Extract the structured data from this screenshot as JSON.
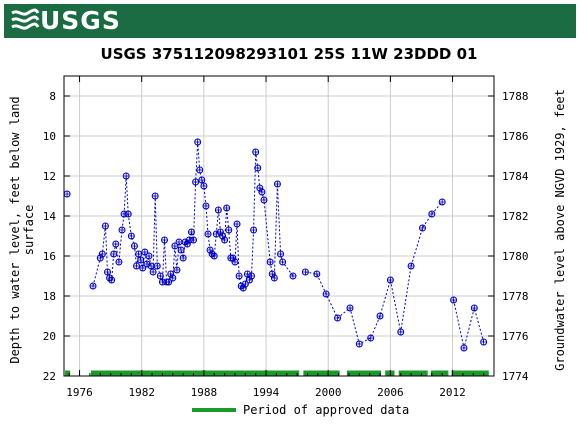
{
  "header": {
    "logo_text": "USGS"
  },
  "chart_data": {
    "type": "scatter",
    "title": "USGS 375112098293101 25S 11W 23DDD 01",
    "ylabel_left": "Depth to water level, feet below land surface",
    "ylabel_left_lines": [
      "Depth to water level, feet below land",
      "surface"
    ],
    "ylabel_right": "Groundwater level above NGVD 1929, feet",
    "xlim": [
      1974.5,
      2016.0
    ],
    "ylim": [
      22,
      7
    ],
    "right_ylim": [
      1774,
      1789
    ],
    "x_ticks": [
      1976,
      1982,
      1988,
      1994,
      2000,
      2006,
      2012
    ],
    "y_ticks": [
      8,
      10,
      12,
      14,
      16,
      18,
      20,
      22
    ],
    "right_y_ticks": [
      1774,
      1776,
      1778,
      1780,
      1782,
      1784,
      1786,
      1788
    ],
    "grid": true,
    "series": [
      {
        "marker": "circle",
        "color": "#0000cc",
        "segments": [
          [
            [
              1974.8,
              12.9
            ]
          ],
          [
            [
              1977.3,
              17.5
            ],
            [
              1978.0,
              16.1
            ],
            [
              1978.2,
              15.9
            ],
            [
              1978.5,
              14.5
            ],
            [
              1978.7,
              16.8
            ],
            [
              1978.9,
              17.1
            ],
            [
              1979.1,
              17.2
            ],
            [
              1979.3,
              15.9
            ],
            [
              1979.5,
              15.4
            ],
            [
              1979.8,
              16.3
            ],
            [
              1980.1,
              14.7
            ],
            [
              1980.3,
              13.9
            ],
            [
              1980.5,
              12.0
            ],
            [
              1980.7,
              13.9
            ],
            [
              1981.0,
              15.0
            ],
            [
              1981.3,
              15.5
            ],
            [
              1981.5,
              16.5
            ],
            [
              1981.7,
              15.9
            ],
            [
              1981.9,
              16.2
            ],
            [
              1982.1,
              16.6
            ],
            [
              1982.3,
              15.8
            ],
            [
              1982.5,
              16.4
            ],
            [
              1982.7,
              16.0
            ],
            [
              1982.9,
              16.5
            ],
            [
              1983.1,
              16.8
            ],
            [
              1983.3,
              13.0
            ],
            [
              1983.5,
              16.5
            ],
            [
              1983.8,
              17.0
            ],
            [
              1984.0,
              17.3
            ],
            [
              1984.2,
              15.2
            ],
            [
              1984.4,
              17.3
            ],
            [
              1984.6,
              17.3
            ],
            [
              1984.8,
              16.9
            ],
            [
              1985.0,
              17.1
            ],
            [
              1985.2,
              15.5
            ],
            [
              1985.4,
              16.7
            ],
            [
              1985.6,
              15.3
            ],
            [
              1985.8,
              15.7
            ],
            [
              1986.0,
              16.1
            ],
            [
              1986.2,
              15.3
            ],
            [
              1986.4,
              15.4
            ],
            [
              1986.6,
              15.2
            ],
            [
              1986.8,
              14.8
            ],
            [
              1987.0,
              15.2
            ],
            [
              1987.2,
              12.3
            ],
            [
              1987.4,
              10.3
            ],
            [
              1987.6,
              11.7
            ],
            [
              1987.8,
              12.2
            ],
            [
              1988.0,
              12.5
            ],
            [
              1988.2,
              13.5
            ],
            [
              1988.4,
              14.9
            ],
            [
              1988.6,
              15.7
            ],
            [
              1988.8,
              15.9
            ],
            [
              1989.0,
              16.0
            ],
            [
              1989.2,
              14.9
            ],
            [
              1989.4,
              13.7
            ],
            [
              1989.6,
              14.8
            ],
            [
              1989.8,
              15.0
            ],
            [
              1990.0,
              15.2
            ],
            [
              1990.2,
              13.6
            ],
            [
              1990.4,
              14.7
            ],
            [
              1990.6,
              16.1
            ],
            [
              1990.8,
              16.1
            ],
            [
              1991.0,
              16.3
            ],
            [
              1991.2,
              14.4
            ],
            [
              1991.4,
              17.0
            ],
            [
              1991.6,
              17.5
            ],
            [
              1991.8,
              17.6
            ],
            [
              1992.0,
              17.4
            ],
            [
              1992.2,
              16.9
            ],
            [
              1992.4,
              17.2
            ],
            [
              1992.6,
              17.0
            ],
            [
              1992.8,
              14.7
            ],
            [
              1993.0,
              10.8
            ],
            [
              1993.2,
              11.6
            ],
            [
              1993.4,
              12.6
            ],
            [
              1993.6,
              12.8
            ],
            [
              1993.8,
              13.2
            ],
            [
              1994.4,
              16.3
            ],
            [
              1994.6,
              16.9
            ],
            [
              1994.8,
              17.1
            ],
            [
              1995.1,
              12.4
            ],
            [
              1995.4,
              15.9
            ],
            [
              1995.6,
              16.3
            ],
            [
              1996.6,
              17.0
            ]
          ],
          [
            [
              1997.8,
              16.8
            ],
            [
              1998.9,
              16.9
            ],
            [
              1999.8,
              17.9
            ],
            [
              2000.9,
              19.1
            ],
            [
              2002.1,
              18.6
            ],
            [
              2003.0,
              20.4
            ],
            [
              2004.1,
              20.1
            ],
            [
              2005.0,
              19.0
            ],
            [
              2006.0,
              17.2
            ],
            [
              2007.0,
              19.8
            ],
            [
              2008.0,
              16.5
            ],
            [
              2009.1,
              14.6
            ],
            [
              2010.0,
              13.9
            ],
            [
              2011.0,
              13.3
            ]
          ],
          [
            [
              2012.1,
              18.2
            ],
            [
              2013.1,
              20.6
            ],
            [
              2014.1,
              18.6
            ],
            [
              2015.0,
              20.3
            ]
          ]
        ]
      }
    ],
    "approved_periods": [
      [
        1974.6,
        1975.1
      ],
      [
        1977.1,
        1997.2
      ],
      [
        1997.6,
        2001.1
      ],
      [
        2001.8,
        2005.1
      ],
      [
        2005.5,
        2006.4
      ],
      [
        2006.8,
        2009.6
      ],
      [
        2009.9,
        2011.6
      ],
      [
        2011.9,
        2015.5
      ]
    ],
    "approved_color": "#1a9a2a",
    "legend": {
      "label": "Period of approved data",
      "placement": "bottom"
    }
  }
}
